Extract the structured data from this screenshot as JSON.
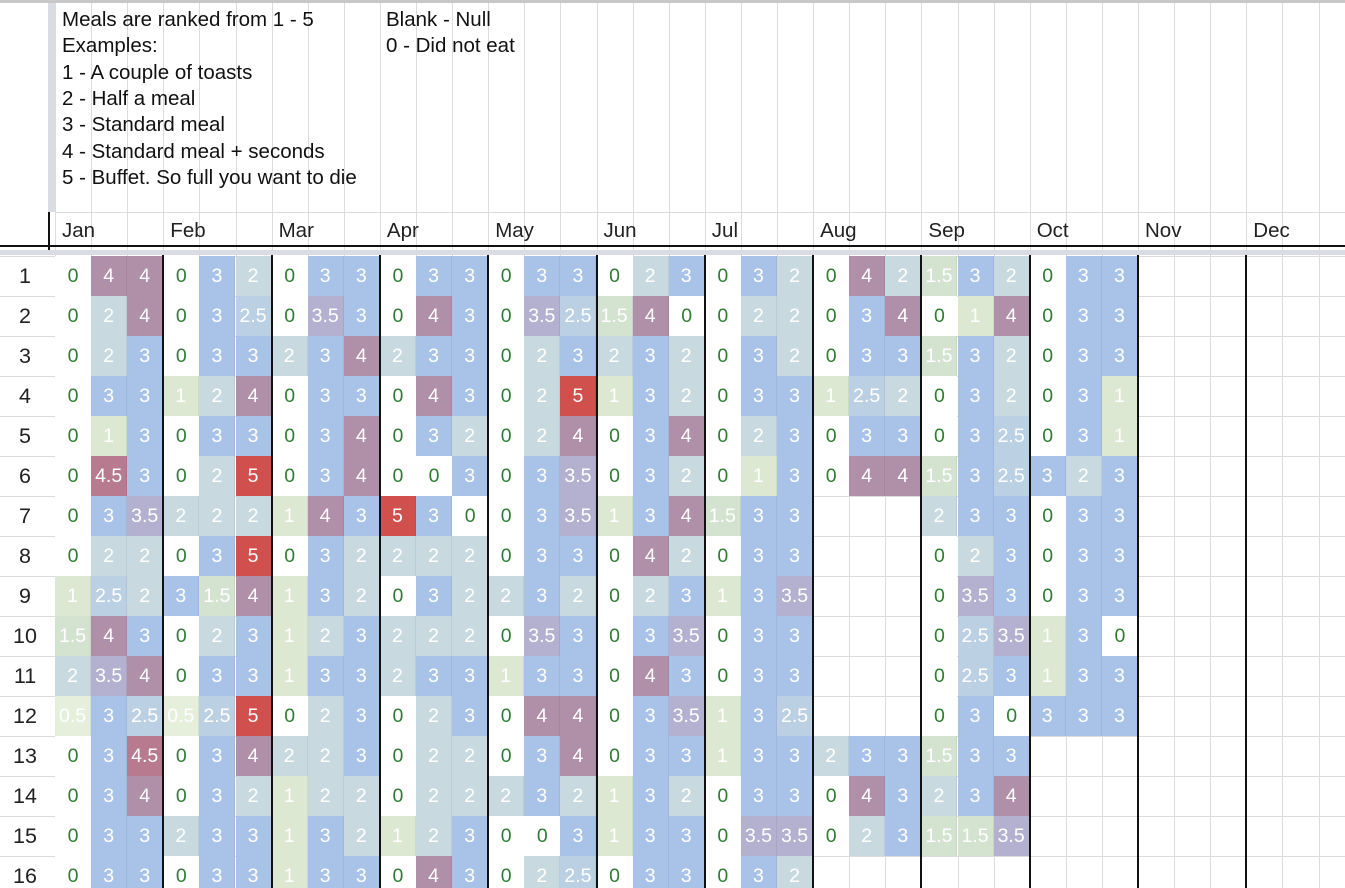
{
  "legend": {
    "lines_left": [
      "Meals are ranked from 1 - 5",
      "Examples:",
      "1 - A couple of toasts",
      "2 - Half a meal",
      "3 - Standard meal",
      "4 - Standard meal + seconds",
      "5 - Buffet. So full you want to die"
    ],
    "lines_right": [
      "Blank - Null",
      "0 - Did not eat"
    ]
  },
  "months": [
    "Jan",
    "Feb",
    "Mar",
    "Apr",
    "May",
    "Jun",
    "Jul",
    "Aug",
    "Sep",
    "Oct",
    "Nov",
    "Dec"
  ],
  "row_numbers": [
    "1",
    "2",
    "3",
    "4",
    "5",
    "6",
    "7",
    "8",
    "9",
    "10",
    "11",
    "12",
    "13",
    "14",
    "15",
    "16"
  ],
  "colors": {
    "zero_bg": "#ffffff",
    "zero_text": "#2e7d32",
    "half_bg": "#e6efdc",
    "one_bg": "#dce8d2",
    "onehalf_bg": "#d4e2d0",
    "two_bg": "#c8dae0",
    "twohalf_bg": "#bcd0e4",
    "three_bg": "#a9c3e8",
    "threehalf_bg": "#b4b0d0",
    "four_bg": "#b08fa8",
    "fourhalf_bg": "#b87a8f",
    "five_bg": "#d0504e",
    "light_text": "#ffffff",
    "heavy_line": "#111111"
  },
  "cells": [
    [
      "0",
      "4",
      "4",
      "0",
      "3",
      "2",
      "0",
      "3",
      "3",
      "0",
      "3",
      "3",
      "0",
      "3",
      "3",
      "0",
      "2",
      "3",
      "0",
      "3",
      "2",
      "0",
      "4",
      "2",
      "1.5",
      "3",
      "2",
      "0",
      "3",
      "3"
    ],
    [
      "0",
      "2",
      "4",
      "0",
      "3",
      "2.5",
      "0",
      "3.5",
      "3",
      "0",
      "4",
      "3",
      "0",
      "3.5",
      "2.5",
      "1.5",
      "4",
      "0",
      "0",
      "2",
      "2",
      "0",
      "3",
      "4",
      "0",
      "1",
      "4",
      "0",
      "3",
      "3"
    ],
    [
      "0",
      "2",
      "3",
      "0",
      "3",
      "3",
      "2",
      "3",
      "4",
      "2",
      "3",
      "3",
      "0",
      "2",
      "3",
      "2",
      "3",
      "2",
      "0",
      "3",
      "2",
      "0",
      "3",
      "3",
      "1.5",
      "3",
      "2",
      "0",
      "3",
      "3"
    ],
    [
      "0",
      "3",
      "3",
      "1",
      "2",
      "4",
      "0",
      "3",
      "3",
      "0",
      "4",
      "3",
      "0",
      "2",
      "5",
      "1",
      "3",
      "2",
      "0",
      "3",
      "3",
      "1",
      "2.5",
      "2",
      "0",
      "3",
      "2",
      "0",
      "3",
      "1"
    ],
    [
      "0",
      "1",
      "3",
      "0",
      "3",
      "3",
      "0",
      "3",
      "4",
      "0",
      "3",
      "2",
      "0",
      "2",
      "4",
      "0",
      "3",
      "4",
      "0",
      "2",
      "3",
      "0",
      "3",
      "3",
      "0",
      "3",
      "2.5",
      "0",
      "3",
      "1"
    ],
    [
      "0",
      "4.5",
      "3",
      "0",
      "2",
      "5",
      "0",
      "3",
      "4",
      "0",
      "0",
      "3",
      "0",
      "3",
      "3.5",
      "0",
      "3",
      "2",
      "0",
      "1",
      "3",
      "0",
      "4",
      "4",
      "1.5",
      "3",
      "2.5",
      "3",
      "2",
      "3"
    ],
    [
      "0",
      "3",
      "3.5",
      "2",
      "2",
      "2",
      "1",
      "4",
      "3",
      "5",
      "3",
      "0",
      "0",
      "3",
      "3.5",
      "1",
      "3",
      "4",
      "1.5",
      "3",
      "3",
      "",
      "",
      "",
      "2",
      "3",
      "3",
      "0",
      "3",
      "3"
    ],
    [
      "0",
      "2",
      "2",
      "0",
      "3",
      "5",
      "0",
      "3",
      "2",
      "2",
      "2",
      "2",
      "0",
      "3",
      "3",
      "0",
      "4",
      "2",
      "0",
      "3",
      "3",
      "",
      "",
      "",
      "0",
      "2",
      "3",
      "0",
      "3",
      "3"
    ],
    [
      "1",
      "2.5",
      "2",
      "3",
      "1.5",
      "4",
      "1",
      "3",
      "2",
      "0",
      "3",
      "2",
      "2",
      "3",
      "2",
      "0",
      "2",
      "3",
      "1",
      "3",
      "3.5",
      "",
      "",
      "",
      "0",
      "3.5",
      "3",
      "0",
      "3",
      "3"
    ],
    [
      "1.5",
      "4",
      "3",
      "0",
      "2",
      "3",
      "1",
      "2",
      "3",
      "2",
      "2",
      "2",
      "0",
      "3.5",
      "3",
      "0",
      "3",
      "3.5",
      "0",
      "3",
      "3",
      "",
      "",
      "",
      "0",
      "2.5",
      "3.5",
      "1",
      "3",
      "0"
    ],
    [
      "2",
      "3.5",
      "4",
      "0",
      "3",
      "3",
      "1",
      "3",
      "3",
      "2",
      "3",
      "3",
      "1",
      "3",
      "3",
      "0",
      "4",
      "3",
      "0",
      "3",
      "3",
      "",
      "",
      "",
      "0",
      "2.5",
      "3",
      "1",
      "3",
      "3"
    ],
    [
      "0.5",
      "3",
      "2.5",
      "0.5",
      "2.5",
      "5",
      "0",
      "2",
      "3",
      "0",
      "2",
      "3",
      "0",
      "4",
      "4",
      "0",
      "3",
      "3.5",
      "1",
      "3",
      "2.5",
      "",
      "",
      "",
      "0",
      "3",
      "0",
      "3",
      "3",
      "3"
    ],
    [
      "0",
      "3",
      "4.5",
      "0",
      "3",
      "4",
      "2",
      "2",
      "3",
      "0",
      "2",
      "2",
      "0",
      "3",
      "4",
      "0",
      "3",
      "3",
      "1",
      "3",
      "3",
      "2",
      "3",
      "3",
      "1.5",
      "3",
      "3",
      "",
      "",
      ""
    ],
    [
      "0",
      "3",
      "4",
      "0",
      "3",
      "2",
      "1",
      "2",
      "2",
      "0",
      "2",
      "2",
      "2",
      "3",
      "2",
      "1",
      "3",
      "2",
      "0",
      "3",
      "3",
      "0",
      "4",
      "3",
      "2",
      "3",
      "4",
      "",
      "",
      ""
    ],
    [
      "0",
      "3",
      "3",
      "2",
      "3",
      "3",
      "1",
      "3",
      "2",
      "1",
      "2",
      "3",
      "0",
      "0",
      "3",
      "1",
      "3",
      "3",
      "0",
      "3.5",
      "3.5",
      "0",
      "2",
      "3",
      "1.5",
      "1.5",
      "3.5",
      "",
      "",
      ""
    ],
    [
      "0",
      "3",
      "3",
      "0",
      "3",
      "3",
      "1",
      "3",
      "3",
      "0",
      "4",
      "3",
      "0",
      "2",
      "2.5",
      "0",
      "3",
      "3",
      "0",
      "3",
      "2",
      "",
      "",
      "",
      "",
      "",
      "",
      "",
      "",
      ""
    ]
  ]
}
